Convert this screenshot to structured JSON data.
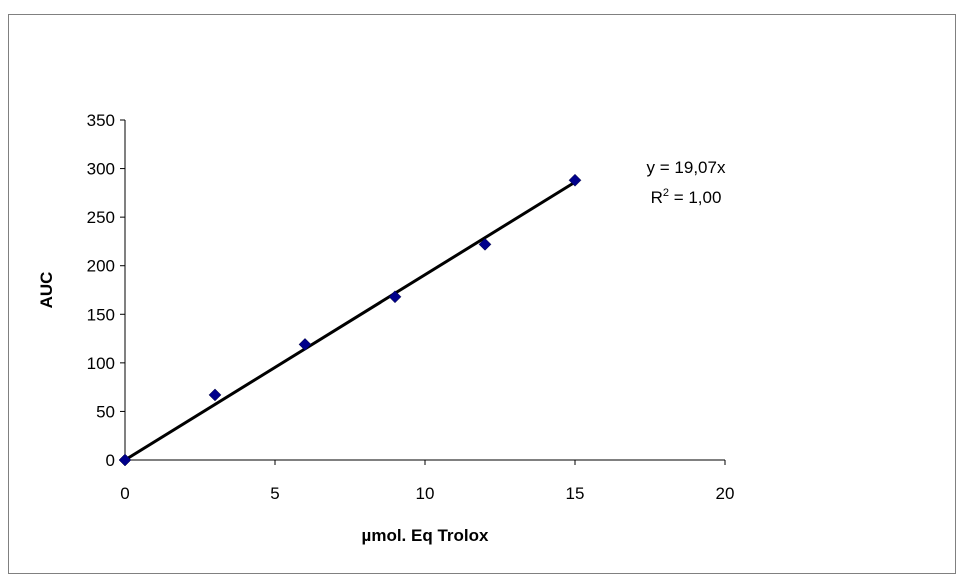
{
  "chart_data": {
    "type": "scatter",
    "title": "",
    "xlabel": "µmol. Eq Trolox",
    "ylabel": "AUC",
    "xlim": [
      0,
      20
    ],
    "ylim": [
      0,
      350
    ],
    "x_ticks": [
      0,
      5,
      10,
      15,
      20
    ],
    "y_ticks": [
      0,
      50,
      100,
      150,
      200,
      250,
      300,
      350
    ],
    "grid": false,
    "series": [
      {
        "x": [
          0,
          3,
          6,
          9,
          12,
          15
        ],
        "y": [
          0,
          67,
          119,
          168,
          222,
          288
        ],
        "marker": "diamond",
        "color": "#00008B"
      }
    ],
    "trendline": {
      "type": "linear",
      "slope": 19.07,
      "intercept": 0,
      "x_range": [
        0,
        15
      ],
      "color": "#000000",
      "equation": "y = 19,07x",
      "r2_prefix": "R",
      "r2_sup": "2",
      "r2_value": " = 1,00"
    }
  }
}
